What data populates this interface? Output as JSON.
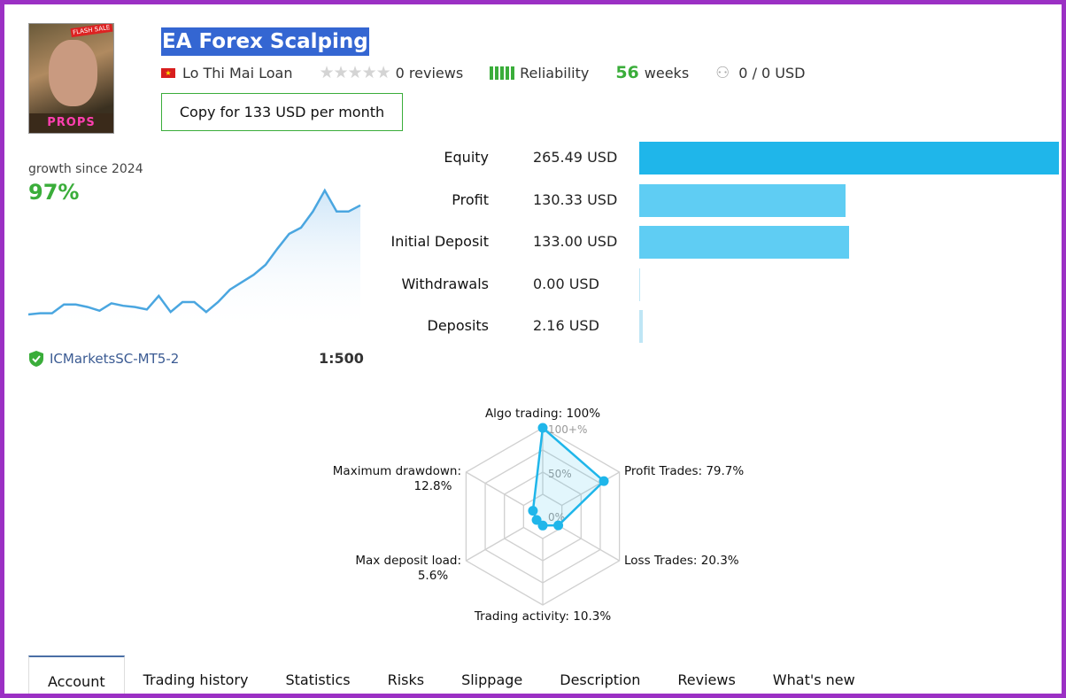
{
  "header": {
    "title": "EA Forex Scalping",
    "author": "Lo Thi Mai Loan",
    "reviews": "0 reviews",
    "rating_stars": 0,
    "reliability_label": "Reliability",
    "reliability_level": 5,
    "weeks_value": "56",
    "weeks_label": "weeks",
    "subscribers": "0 / 0 USD",
    "copy_button": "Copy for 133 USD per month",
    "avatar_text": "PROPS FIRM!",
    "avatar_badge": "FLASH SALE"
  },
  "growth": {
    "label": "growth since 2024",
    "value": "97%",
    "curve": [
      0,
      1,
      1,
      8,
      8,
      6,
      3,
      9,
      7,
      6,
      4,
      15,
      2,
      10,
      10,
      2,
      10,
      20,
      26,
      32,
      40,
      53,
      65,
      70,
      83,
      100,
      83,
      83,
      88
    ],
    "broker": "ICMarketsSC-MT5-2",
    "leverage": "1:500"
  },
  "stats": [
    {
      "label": "Equity",
      "value": "265.49 USD",
      "amount": 265.49
    },
    {
      "label": "Profit",
      "value": "130.33 USD",
      "amount": 130.33
    },
    {
      "label": "Initial Deposit",
      "value": "133.00 USD",
      "amount": 133.0
    },
    {
      "label": "Withdrawals",
      "value": "0.00 USD",
      "amount": 0
    },
    {
      "label": "Deposits",
      "value": "2.16 USD",
      "amount": 2.16
    }
  ],
  "radar": {
    "ring_labels": [
      "100+%",
      "50%",
      "0%"
    ],
    "axes": [
      {
        "label": "Algo trading: 100%",
        "value": 100
      },
      {
        "label": "Profit Trades: 79.7%",
        "value": 79.7
      },
      {
        "label": "Loss Trades: 20.3%",
        "value": 20.3
      },
      {
        "label": "Trading activity: 10.3%",
        "value": 10.3
      },
      {
        "label": "Max deposit load:",
        "label2": "5.6%",
        "value": 5.6
      },
      {
        "label": "Maximum drawdown:",
        "label2": "12.8%",
        "value": 12.8
      }
    ]
  },
  "tabs": [
    "Account",
    "Trading history",
    "Statistics",
    "Risks",
    "Slippage",
    "Description",
    "Reviews",
    "What's new"
  ],
  "colors": {
    "accent": "#1fb6ea",
    "green": "#3aad3a",
    "title_bg": "#3466d2",
    "frame": "#9b30c4"
  }
}
